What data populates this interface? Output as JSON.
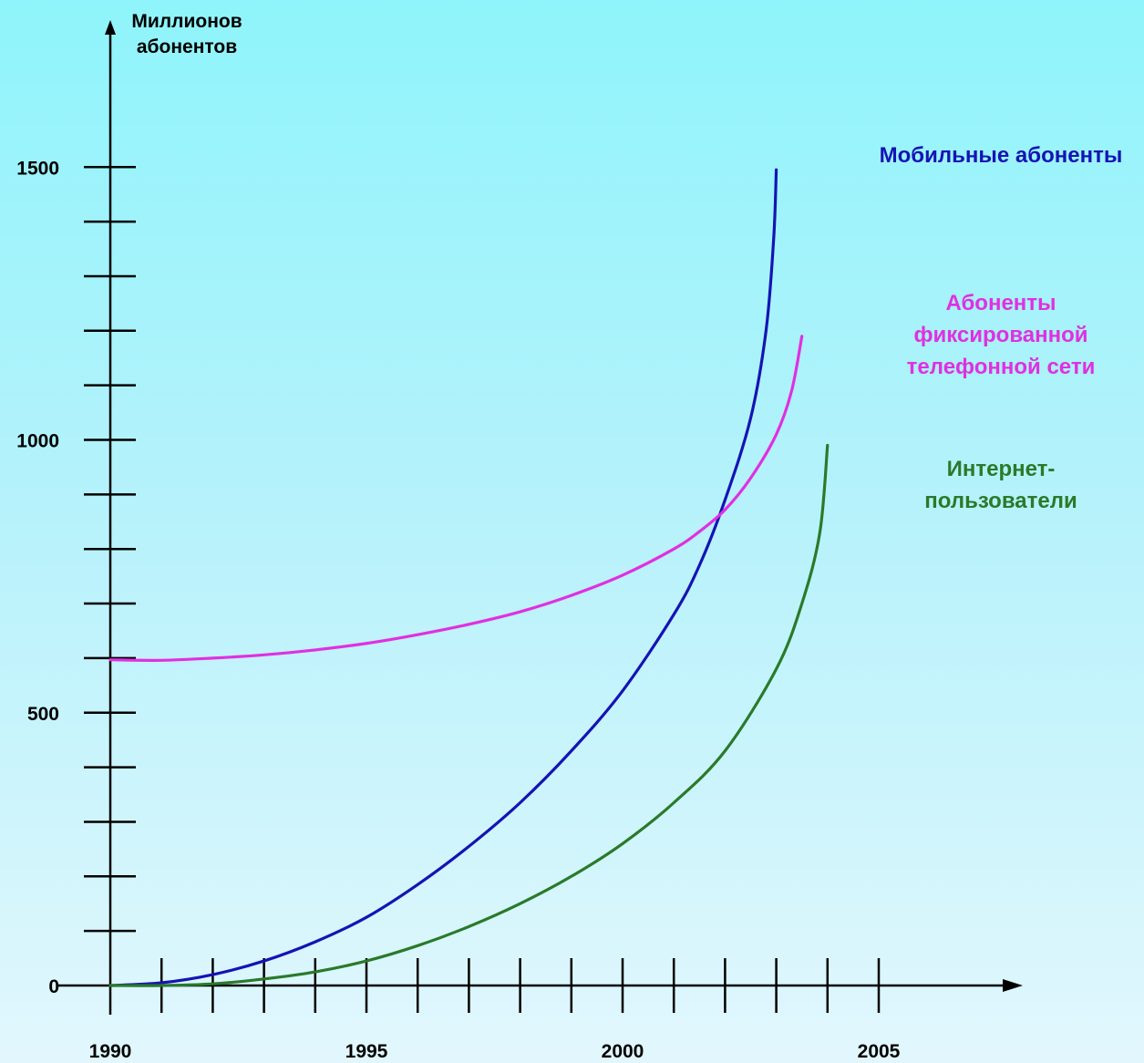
{
  "chart_data": {
    "type": "line",
    "ylabel": [
      "Миллионов",
      "абонентов"
    ],
    "xlim": [
      1990,
      2008
    ],
    "ylim": [
      0,
      1650
    ],
    "x_ticks_minor_step": 1,
    "y_ticks_minor_step": 100,
    "x_tick_labels": [
      {
        "x": 1990,
        "label": "1990"
      },
      {
        "x": 1995,
        "label": "1995"
      },
      {
        "x": 2000,
        "label": "2000"
      },
      {
        "x": 2005,
        "label": "2005"
      }
    ],
    "y_tick_labels": [
      {
        "y": 0,
        "label": "0"
      },
      {
        "y": 500,
        "label": "500"
      },
      {
        "y": 1000,
        "label": "1000"
      },
      {
        "y": 1500,
        "label": "1500"
      }
    ],
    "series": [
      {
        "name": "Мобильные абоненты",
        "label_lines": [
          "Мобильные абоненты"
        ],
        "color": "#1414b4",
        "points": [
          [
            1990,
            0
          ],
          [
            1991,
            5
          ],
          [
            1992,
            20
          ],
          [
            1993,
            45
          ],
          [
            1994,
            80
          ],
          [
            1995,
            125
          ],
          [
            1996,
            185
          ],
          [
            1997,
            255
          ],
          [
            1998,
            335
          ],
          [
            1999,
            430
          ],
          [
            2000,
            540
          ],
          [
            2001,
            680
          ],
          [
            2001.5,
            770
          ],
          [
            2002,
            890
          ],
          [
            2002.5,
            1040
          ],
          [
            2002.8,
            1200
          ],
          [
            2002.95,
            1370
          ],
          [
            2003,
            1495
          ]
        ]
      },
      {
        "name": "Абоненты фиксированной телефонной сети",
        "label_lines": [
          "Абоненты",
          "фиксированной",
          "телефонной сети"
        ],
        "color": "#e030e0",
        "points": [
          [
            1990,
            597
          ],
          [
            1991,
            596
          ],
          [
            1992,
            600
          ],
          [
            1993,
            606
          ],
          [
            1994,
            615
          ],
          [
            1995,
            627
          ],
          [
            1996,
            643
          ],
          [
            1997,
            662
          ],
          [
            1998,
            685
          ],
          [
            1999,
            715
          ],
          [
            2000,
            752
          ],
          [
            2001,
            800
          ],
          [
            2001.5,
            832
          ],
          [
            2002,
            872
          ],
          [
            2002.5,
            930
          ],
          [
            2003,
            1010
          ],
          [
            2003.3,
            1090
          ],
          [
            2003.5,
            1190
          ]
        ]
      },
      {
        "name": "Интернет-пользователи",
        "label_lines": [
          "Интернет-",
          "пользователи"
        ],
        "color": "#2a7a2a",
        "points": [
          [
            1990,
            0
          ],
          [
            1991,
            0
          ],
          [
            1992,
            3
          ],
          [
            1993,
            12
          ],
          [
            1994,
            25
          ],
          [
            1995,
            45
          ],
          [
            1996,
            73
          ],
          [
            1997,
            108
          ],
          [
            1998,
            150
          ],
          [
            1999,
            200
          ],
          [
            2000,
            260
          ],
          [
            2001,
            335
          ],
          [
            2002,
            430
          ],
          [
            2003,
            580
          ],
          [
            2003.5,
            700
          ],
          [
            2003.85,
            830
          ],
          [
            2004,
            990
          ]
        ]
      }
    ]
  }
}
